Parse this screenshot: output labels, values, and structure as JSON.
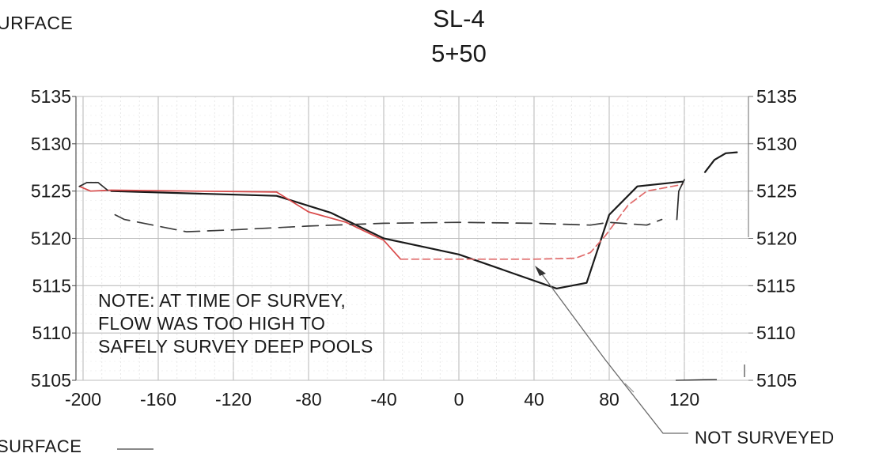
{
  "header": {
    "top_left_fragment": "URFACE",
    "bottom_left_fragment": "SURFACE"
  },
  "chart_data": {
    "type": "line",
    "title": "SL-4",
    "subtitle": "5+50",
    "xlabel": "",
    "ylabel": "",
    "xlim": [
      -202,
      148
    ],
    "ylim": [
      5105,
      5135
    ],
    "x_ticks": [
      -200,
      -160,
      -120,
      -80,
      -40,
      0,
      40,
      80,
      120
    ],
    "y_ticks": [
      5105,
      5110,
      5115,
      5120,
      5125,
      5130,
      5135
    ],
    "grid": true,
    "series": [
      {
        "color": "#1a1a1a",
        "style": "solid",
        "points": [
          [
            -185,
            5125.0
          ],
          [
            -97,
            5124.5
          ],
          [
            -68,
            5122.7
          ],
          [
            -40,
            5120.0
          ],
          [
            0,
            5118.3
          ],
          [
            52,
            5114.7
          ],
          [
            68,
            5115.3
          ],
          [
            80,
            5122.5
          ],
          [
            95,
            5125.5
          ],
          [
            119,
            5126.0
          ]
        ]
      },
      {
        "color": "#d94a4a",
        "style": "solid",
        "points": [
          [
            -202,
            5125.5
          ],
          [
            -196,
            5125.0
          ],
          [
            -185,
            5125.1
          ],
          [
            -97,
            5124.9
          ],
          [
            -80,
            5122.8
          ],
          [
            -60,
            5121.7
          ],
          [
            -40,
            5119.8
          ],
          [
            -31,
            5117.8
          ]
        ]
      },
      {
        "color": "#e06a6a",
        "style": "dashed",
        "points": [
          [
            -31,
            5117.8
          ],
          [
            0,
            5117.8
          ],
          [
            40,
            5117.8
          ],
          [
            62,
            5117.9
          ],
          [
            70,
            5118.5
          ],
          [
            78,
            5120.3
          ],
          [
            90,
            5123.5
          ],
          [
            100,
            5125.0
          ],
          [
            119,
            5125.7
          ]
        ]
      },
      {
        "color": "#3a3a3a",
        "style": "dashed",
        "points": [
          [
            -183,
            5122.5
          ],
          [
            -178,
            5122.0
          ],
          [
            -145,
            5120.7
          ],
          [
            -120,
            5120.9
          ],
          [
            -80,
            5121.3
          ],
          [
            -40,
            5121.6
          ],
          [
            0,
            5121.7
          ],
          [
            40,
            5121.6
          ],
          [
            70,
            5121.4
          ],
          [
            80,
            5121.7
          ],
          [
            100,
            5121.4
          ],
          [
            108,
            5122.0
          ]
        ]
      },
      {
        "color": "#2a2a2a",
        "style": "solid",
        "points": [
          [
            -202,
            5125.5
          ],
          [
            -198,
            5125.9
          ],
          [
            -192,
            5125.9
          ],
          [
            -187,
            5125.1
          ]
        ]
      },
      {
        "color": "#2a2a2a",
        "style": "solid",
        "points": [
          [
            116,
            5122.0
          ],
          [
            117,
            5125.0
          ],
          [
            120,
            5126.2
          ]
        ]
      },
      {
        "color": "#1a1a1a",
        "style": "solid",
        "points": [
          [
            131,
            5127.0
          ],
          [
            136,
            5128.3
          ],
          [
            142,
            5129.0
          ],
          [
            148,
            5129.1
          ]
        ]
      }
    ],
    "annotations": {
      "note_lines": [
        "NOTE: AT TIME OF SURVEY,",
        "FLOW WAS TOO HIGH TO",
        "SAFELY SURVEY DEEP POOLS"
      ],
      "callout_label": "NOT SURVEYED"
    }
  }
}
